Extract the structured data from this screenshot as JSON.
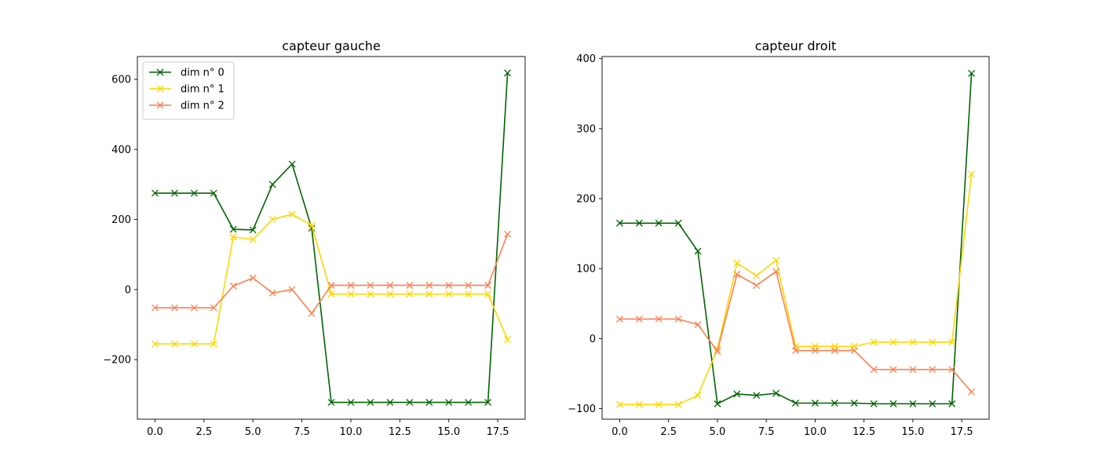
{
  "chart_data": [
    {
      "type": "line",
      "title": "capteur gauche",
      "xlabel": "",
      "ylabel": "",
      "xlim": [
        -0.9,
        18.9
      ],
      "ylim": [
        -370,
        665
      ],
      "xticks": [
        0.0,
        2.5,
        5.0,
        7.5,
        10.0,
        12.5,
        15.0,
        17.5
      ],
      "xtick_labels": [
        "0.0",
        "2.5",
        "5.0",
        "7.5",
        "10.0",
        "12.5",
        "15.0",
        "17.5"
      ],
      "yticks": [
        -200,
        0,
        200,
        400,
        600
      ],
      "ytick_labels": [
        "−200",
        "0",
        "200",
        "400",
        "600"
      ],
      "grid": false,
      "legend": "top-left",
      "x": [
        0,
        1,
        2,
        3,
        4,
        5,
        6,
        7,
        8,
        9,
        10,
        11,
        12,
        13,
        14,
        15,
        16,
        17,
        18
      ],
      "series": [
        {
          "name": "dim n° 0",
          "color": "#006400",
          "marker": "x",
          "values": [
            275,
            275,
            275,
            275,
            172,
            170,
            300,
            358,
            175,
            -322,
            -322,
            -322,
            -322,
            -322,
            -322,
            -322,
            -322,
            -322,
            618
          ]
        },
        {
          "name": "dim n° 1",
          "color": "#FFD700",
          "marker": "x",
          "values": [
            -155,
            -155,
            -155,
            -155,
            150,
            143,
            200,
            215,
            183,
            -13,
            -13,
            -13,
            -13,
            -13,
            -13,
            -13,
            -13,
            -13,
            -143
          ]
        },
        {
          "name": "dim n° 2",
          "color": "#FF7F50",
          "marker": "x",
          "values": [
            -52,
            -52,
            -52,
            -52,
            10,
            33,
            -10,
            0,
            -68,
            12,
            12,
            12,
            12,
            12,
            12,
            12,
            12,
            12,
            158
          ]
        }
      ]
    },
    {
      "type": "line",
      "title": "capteur droit",
      "xlabel": "",
      "ylabel": "",
      "xlim": [
        -0.9,
        18.9
      ],
      "ylim": [
        -115,
        403
      ],
      "xticks": [
        0.0,
        2.5,
        5.0,
        7.5,
        10.0,
        12.5,
        15.0,
        17.5
      ],
      "xtick_labels": [
        "0.0",
        "2.5",
        "5.0",
        "7.5",
        "10.0",
        "12.5",
        "15.0",
        "17.5"
      ],
      "yticks": [
        -100,
        0,
        100,
        200,
        300,
        400
      ],
      "ytick_labels": [
        "−100",
        "0",
        "100",
        "200",
        "300",
        "400"
      ],
      "grid": false,
      "legend": "none",
      "x": [
        0,
        1,
        2,
        3,
        4,
        5,
        6,
        7,
        8,
        9,
        10,
        11,
        12,
        13,
        14,
        15,
        16,
        17,
        18
      ],
      "series": [
        {
          "name": "dim n° 0",
          "color": "#006400",
          "marker": "x",
          "values": [
            165,
            165,
            165,
            165,
            125,
            -93,
            -79,
            -81,
            -78,
            -92,
            -92,
            -92,
            -92,
            -93,
            -93,
            -93,
            -93,
            -93,
            379
          ]
        },
        {
          "name": "dim n° 1",
          "color": "#FFD700",
          "marker": "x",
          "values": [
            -94,
            -94,
            -94,
            -94,
            -81,
            -15,
            108,
            90,
            112,
            -11,
            -11,
            -11,
            -11,
            -5,
            -5,
            -5,
            -5,
            -5,
            235
          ]
        },
        {
          "name": "dim n° 2",
          "color": "#FF7F50",
          "marker": "x",
          "values": [
            28,
            28,
            28,
            28,
            20,
            -18,
            92,
            76,
            96,
            -17,
            -17,
            -17,
            -17,
            -44,
            -44,
            -44,
            -44,
            -44,
            -76
          ]
        }
      ]
    }
  ]
}
